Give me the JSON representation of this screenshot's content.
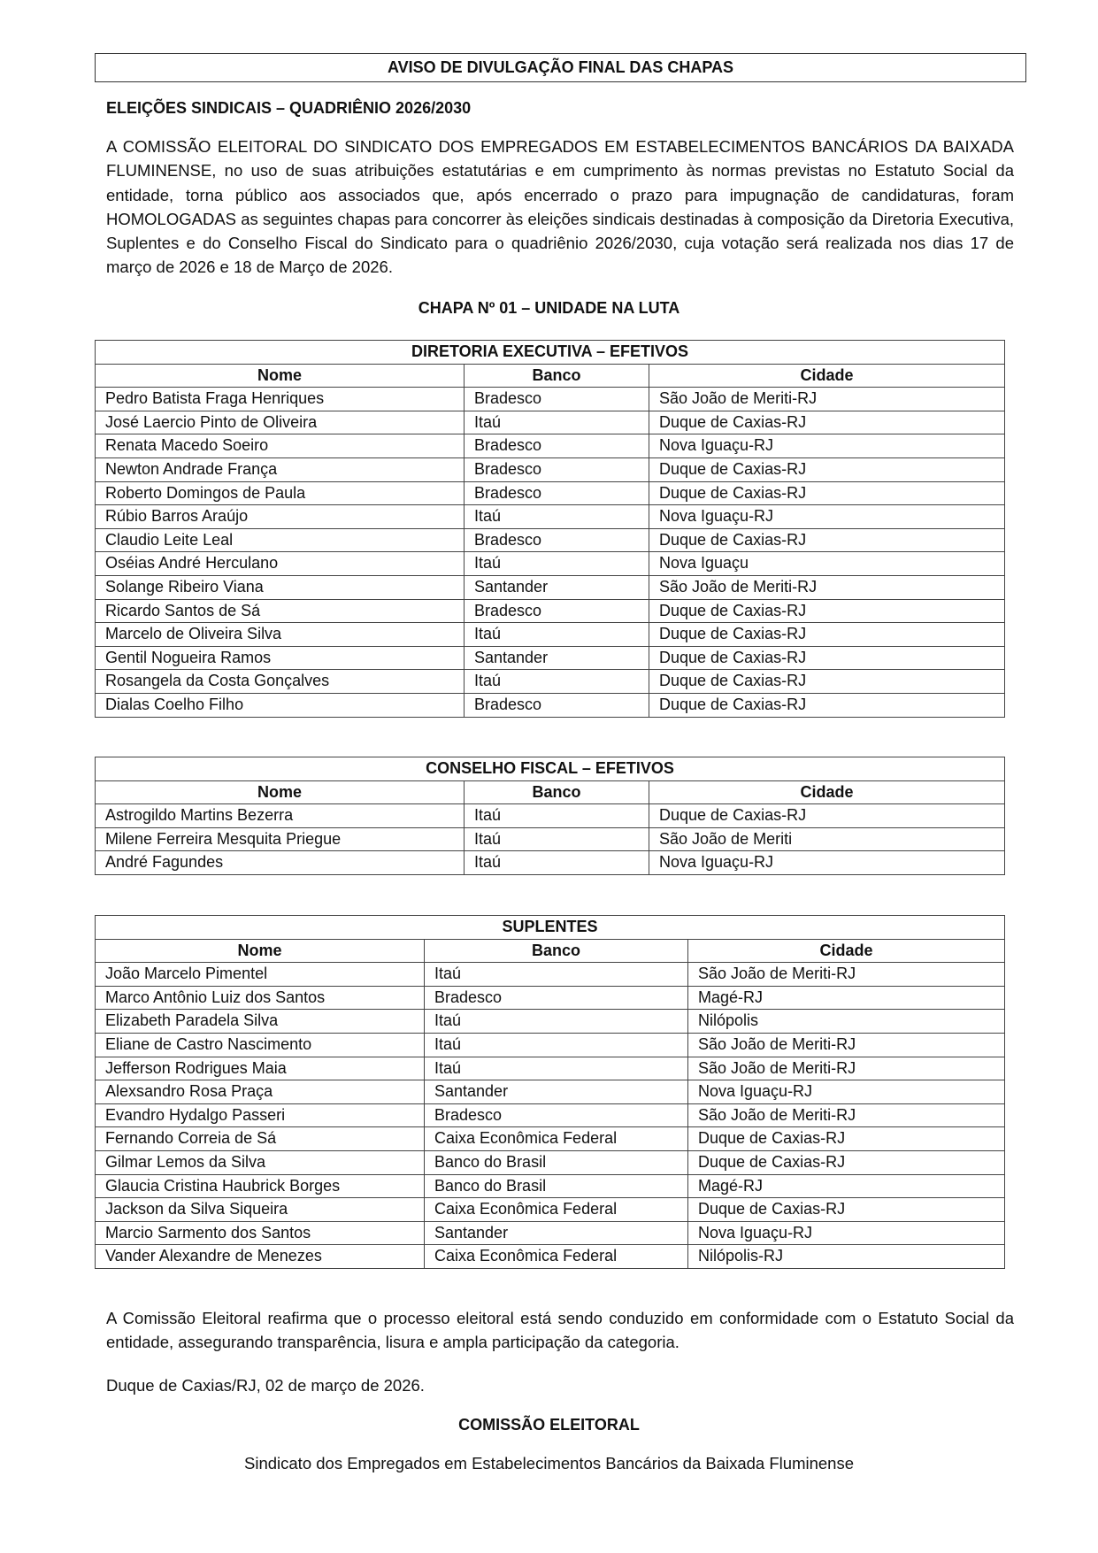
{
  "title": "AVISO DE DIVULGAÇÃO FINAL DAS CHAPAS",
  "subtitle": "ELEIÇÕES SINDICAIS – QUADRIÊNIO 2026/2030",
  "intro": "A COMISSÃO ELEITORAL DO SINDICATO DOS EMPREGADOS EM ESTABELECIMENTOS BANCÁRIOS DA BAIXADA FLUMINENSE, no uso de suas atribuições estatutárias e em cumprimento às normas previstas no Estatuto Social da entidade, torna público aos associados que, após encerrado o prazo para impugnação de candidaturas, foram HOMOLOGADAS as seguintes chapas para concorrer às eleições sindicais destinadas à composição da Diretoria Executiva, Suplentes  e do Conselho Fiscal  do Sindicato para o quadriênio 2026/2030, cuja votação será realizada nos  dias  17 de março de 2026 e 18 de Março de 2026.",
  "chapa": "CHAPA Nº 01 – UNIDADE NA LUTA",
  "tables": [
    {
      "id": "t1",
      "caption": "DIRETORIA EXECUTIVA – EFETIVOS",
      "headers": [
        "Nome",
        "Banco",
        "Cidade"
      ],
      "rows": [
        [
          "Pedro Batista Fraga Henriques",
          "Bradesco",
          "São João de Meriti-RJ"
        ],
        [
          "José Laercio Pinto de Oliveira",
          "Itaú",
          "Duque de Caxias-RJ"
        ],
        [
          "Renata Macedo Soeiro",
          "Bradesco",
          "Nova Iguaçu-RJ"
        ],
        [
          "Newton Andrade França",
          "Bradesco",
          "Duque de Caxias-RJ"
        ],
        [
          "Roberto Domingos de Paula",
          "Bradesco",
          "Duque de Caxias-RJ"
        ],
        [
          "Rúbio Barros Araújo",
          "Itaú",
          "Nova Iguaçu-RJ"
        ],
        [
          "Claudio Leite Leal",
          "Bradesco",
          "Duque de Caxias-RJ"
        ],
        [
          "Oséias André Herculano",
          "Itaú",
          "Nova Iguaçu"
        ],
        [
          "Solange Ribeiro Viana",
          "Santander",
          "São João de Meriti-RJ"
        ],
        [
          "Ricardo Santos de Sá",
          "Bradesco",
          "Duque de Caxias-RJ"
        ],
        [
          "Marcelo de Oliveira Silva",
          "Itaú",
          "Duque de Caxias-RJ"
        ],
        [
          "Gentil Nogueira Ramos",
          "Santander",
          "Duque de Caxias-RJ"
        ],
        [
          "Rosangela da Costa Gonçalves",
          "Itaú",
          "Duque de Caxias-RJ"
        ],
        [
          "Dialas Coelho Filho",
          "Bradesco",
          "Duque de Caxias-RJ"
        ]
      ]
    },
    {
      "id": "t2",
      "caption": "CONSELHO FISCAL – EFETIVOS",
      "headers": [
        "Nome",
        "Banco",
        "Cidade"
      ],
      "rows": [
        [
          "Astrogildo Martins Bezerra",
          "Itaú",
          "Duque de Caxias-RJ"
        ],
        [
          "Milene Ferreira Mesquita Priegue",
          "Itaú",
          "São João de Meriti"
        ],
        [
          "André Fagundes",
          "Itaú",
          "Nova Iguaçu-RJ"
        ]
      ]
    },
    {
      "id": "t3",
      "caption": "SUPLENTES",
      "headers": [
        "Nome",
        "Banco",
        "Cidade"
      ],
      "rows": [
        [
          "João Marcelo Pimentel",
          "Itaú",
          "São João de Meriti-RJ"
        ],
        [
          "Marco Antônio Luiz dos Santos",
          "Bradesco",
          "Magé-RJ"
        ],
        [
          "Elizabeth Paradela Silva",
          "Itaú",
          "Nilópolis"
        ],
        [
          "Eliane de Castro Nascimento",
          "Itaú",
          "São João de Meriti-RJ"
        ],
        [
          "Jefferson Rodrigues Maia",
          "Itaú",
          "São João de Meriti-RJ"
        ],
        [
          "Alexsandro Rosa Praça",
          "Santander",
          "Nova Iguaçu-RJ"
        ],
        [
          "Evandro Hydalgo Passeri",
          "Bradesco",
          "São João de Meriti-RJ"
        ],
        [
          "Fernando Correia de Sá",
          "Caixa Econômica Federal",
          "Duque de Caxias-RJ"
        ],
        [
          "Gilmar Lemos da Silva",
          "Banco do Brasil",
          "Duque de Caxias-RJ"
        ],
        [
          "Glaucia Cristina Haubrick Borges",
          "Banco do Brasil",
          "Magé-RJ"
        ],
        [
          "Jackson da Silva Siqueira",
          "Caixa Econômica Federal",
          "Duque de Caxias-RJ"
        ],
        [
          "Marcio Sarmento dos Santos",
          "Santander",
          "Nova Iguaçu-RJ"
        ],
        [
          "Vander Alexandre de Menezes",
          "Caixa Econômica Federal",
          "Nilópolis-RJ"
        ]
      ]
    }
  ],
  "closing": "A Comissão Eleitoral reafirma que o processo eleitoral está sendo conduzido em conformidade com o Estatuto Social da entidade, assegurando transparência, lisura e ampla participação da categoria.",
  "date": "Duque de Caxias/RJ, 02 de março de 2026.",
  "signature": "COMISSÃO ELEITORAL",
  "organization": "Sindicato dos Empregados em Estabelecimentos Bancários da Baixada Fluminense"
}
